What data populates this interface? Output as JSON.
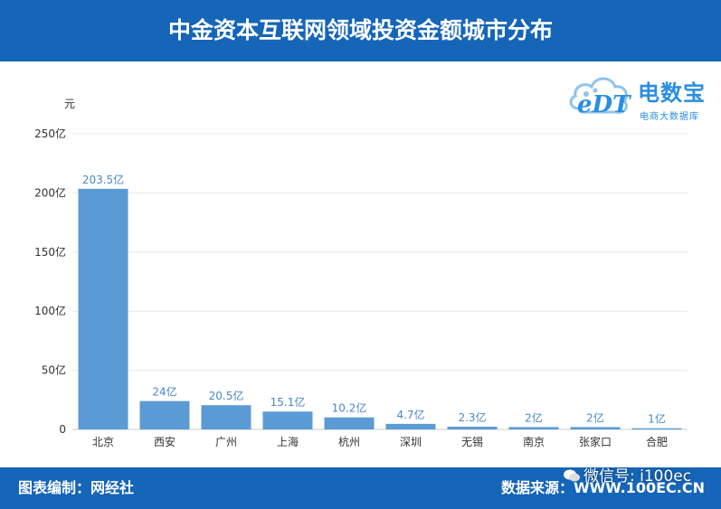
{
  "header": {
    "title": "中金资本互联网领域投资金额城市分布"
  },
  "footer": {
    "credit": "图表编制：网经社",
    "source": "数据来源：WWW.100EC.CN",
    "wechat": "微信号: i100ec"
  },
  "logo": {
    "mark": "eDT",
    "name": "电数宝",
    "subtitle": "电商大数据库"
  },
  "colors": {
    "bar": "#5b9bd5",
    "header": "#1565b8",
    "label": "#4a88c8"
  },
  "chart_data": {
    "type": "bar",
    "title": "中金资本互联网领域投资金额城市分布",
    "unit_label": "元",
    "categories": [
      "北京",
      "西安",
      "广州",
      "上海",
      "杭州",
      "深圳",
      "无锡",
      "南京",
      "张家口",
      "合肥"
    ],
    "values": [
      203.5,
      24,
      20.5,
      15.1,
      10.2,
      4.7,
      2.3,
      2,
      2,
      1
    ],
    "value_labels": [
      "203.5亿",
      "24亿",
      "20.5亿",
      "15.1亿",
      "10.2亿",
      "4.7亿",
      "2.3亿",
      "2亿",
      "2亿",
      "1亿"
    ],
    "ylim": [
      0,
      250
    ],
    "yticks": [
      0,
      50,
      100,
      150,
      200,
      250
    ],
    "ytick_labels": [
      "0",
      "50亿",
      "100亿",
      "150亿",
      "200亿",
      "250亿"
    ],
    "grid": true
  }
}
